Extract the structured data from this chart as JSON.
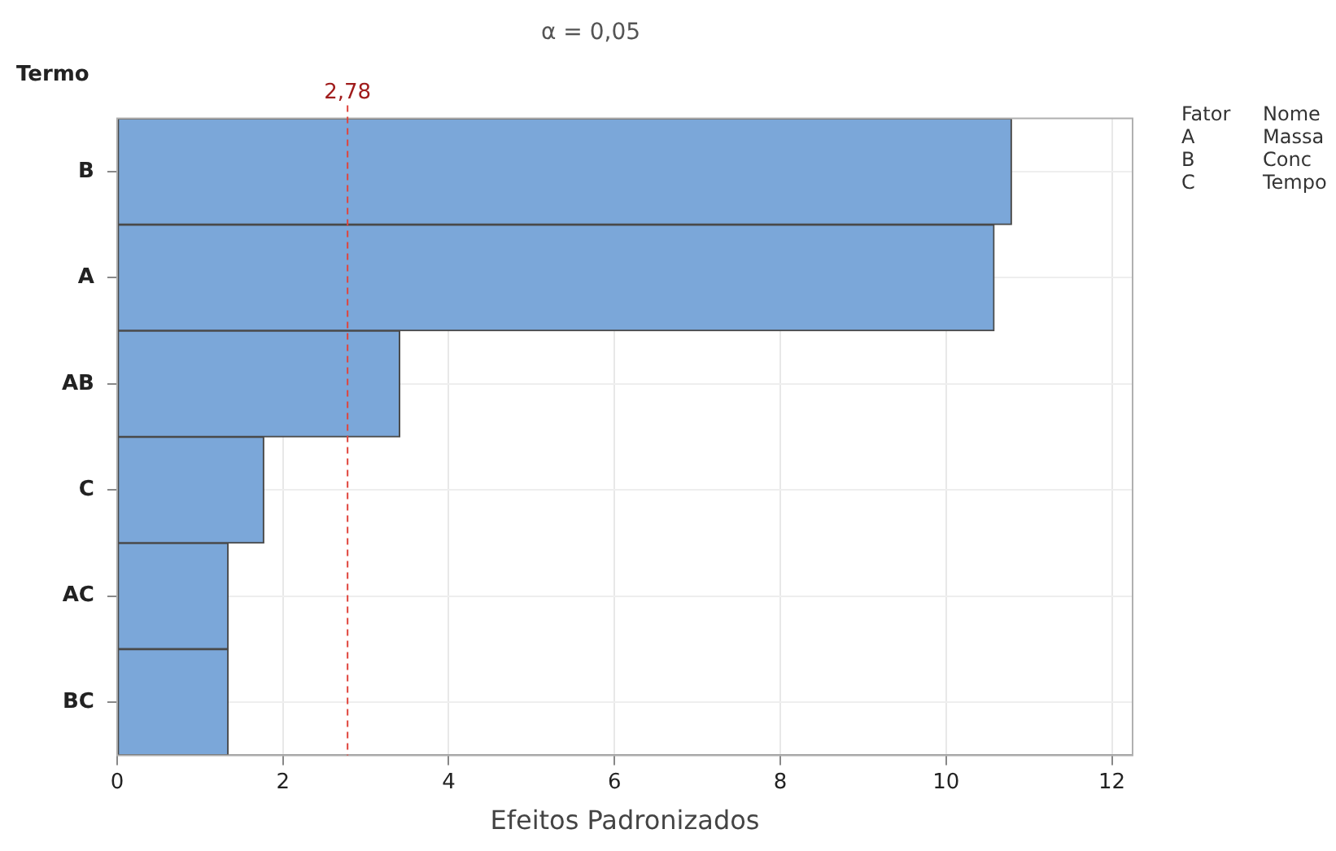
{
  "chart_data": {
    "type": "bar",
    "orientation": "horizontal",
    "title": "α = 0,05",
    "xlabel": "Efeitos Padronizados",
    "ylabel": "Termo",
    "categories": [
      "B",
      "A",
      "AB",
      "C",
      "AC",
      "BC"
    ],
    "values": [
      10.79,
      10.58,
      3.41,
      1.77,
      1.34,
      1.34
    ],
    "color": "#7ba7d9",
    "xlim": [
      0,
      12.25
    ],
    "xticks": [
      0,
      2,
      4,
      6,
      8,
      10,
      12
    ],
    "grid": true,
    "legend": false,
    "ref_lines": [
      {
        "axis": "x",
        "value": 2.78,
        "label": "2,78",
        "color": "#e0443c",
        "line_style": "dashed"
      }
    ],
    "annotations": [
      "Fator\tNome",
      "A\tMassa",
      "B\tConc",
      "C\tTempo"
    ]
  }
}
